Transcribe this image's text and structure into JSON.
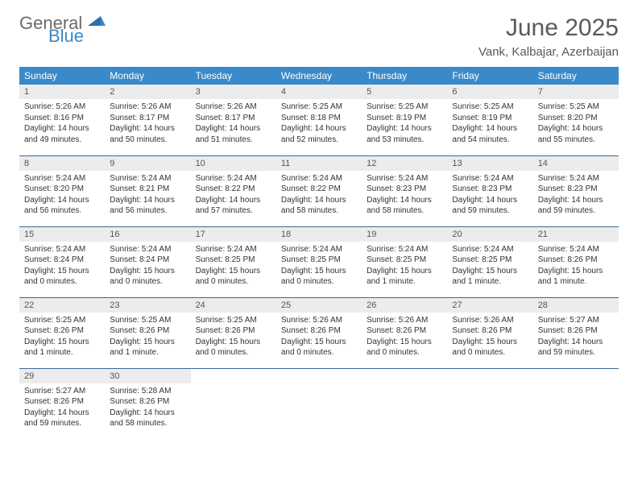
{
  "logo": {
    "general": "General",
    "blue": "Blue"
  },
  "title": "June 2025",
  "location": "Vank, Kalbajar, Azerbaijan",
  "colors": {
    "header_bg": "#3a8ac9",
    "header_text": "#ffffff",
    "daynum_bg": "#ececec",
    "row_border": "#3a6a9a",
    "title_color": "#5a5a5a",
    "logo_gray": "#6b6b6b",
    "logo_blue": "#3a8ac9"
  },
  "weekdays": [
    "Sunday",
    "Monday",
    "Tuesday",
    "Wednesday",
    "Thursday",
    "Friday",
    "Saturday"
  ],
  "font": {
    "body_size": 10,
    "daynum_size": 11,
    "weekday_size": 12,
    "title_size": 30,
    "location_size": 15
  },
  "days": [
    {
      "n": 1,
      "sunrise": "5:26 AM",
      "sunset": "8:16 PM",
      "daylight": "14 hours and 49 minutes."
    },
    {
      "n": 2,
      "sunrise": "5:26 AM",
      "sunset": "8:17 PM",
      "daylight": "14 hours and 50 minutes."
    },
    {
      "n": 3,
      "sunrise": "5:26 AM",
      "sunset": "8:17 PM",
      "daylight": "14 hours and 51 minutes."
    },
    {
      "n": 4,
      "sunrise": "5:25 AM",
      "sunset": "8:18 PM",
      "daylight": "14 hours and 52 minutes."
    },
    {
      "n": 5,
      "sunrise": "5:25 AM",
      "sunset": "8:19 PM",
      "daylight": "14 hours and 53 minutes."
    },
    {
      "n": 6,
      "sunrise": "5:25 AM",
      "sunset": "8:19 PM",
      "daylight": "14 hours and 54 minutes."
    },
    {
      "n": 7,
      "sunrise": "5:25 AM",
      "sunset": "8:20 PM",
      "daylight": "14 hours and 55 minutes."
    },
    {
      "n": 8,
      "sunrise": "5:24 AM",
      "sunset": "8:20 PM",
      "daylight": "14 hours and 56 minutes."
    },
    {
      "n": 9,
      "sunrise": "5:24 AM",
      "sunset": "8:21 PM",
      "daylight": "14 hours and 56 minutes."
    },
    {
      "n": 10,
      "sunrise": "5:24 AM",
      "sunset": "8:22 PM",
      "daylight": "14 hours and 57 minutes."
    },
    {
      "n": 11,
      "sunrise": "5:24 AM",
      "sunset": "8:22 PM",
      "daylight": "14 hours and 58 minutes."
    },
    {
      "n": 12,
      "sunrise": "5:24 AM",
      "sunset": "8:23 PM",
      "daylight": "14 hours and 58 minutes."
    },
    {
      "n": 13,
      "sunrise": "5:24 AM",
      "sunset": "8:23 PM",
      "daylight": "14 hours and 59 minutes."
    },
    {
      "n": 14,
      "sunrise": "5:24 AM",
      "sunset": "8:23 PM",
      "daylight": "14 hours and 59 minutes."
    },
    {
      "n": 15,
      "sunrise": "5:24 AM",
      "sunset": "8:24 PM",
      "daylight": "15 hours and 0 minutes."
    },
    {
      "n": 16,
      "sunrise": "5:24 AM",
      "sunset": "8:24 PM",
      "daylight": "15 hours and 0 minutes."
    },
    {
      "n": 17,
      "sunrise": "5:24 AM",
      "sunset": "8:25 PM",
      "daylight": "15 hours and 0 minutes."
    },
    {
      "n": 18,
      "sunrise": "5:24 AM",
      "sunset": "8:25 PM",
      "daylight": "15 hours and 0 minutes."
    },
    {
      "n": 19,
      "sunrise": "5:24 AM",
      "sunset": "8:25 PM",
      "daylight": "15 hours and 1 minute."
    },
    {
      "n": 20,
      "sunrise": "5:24 AM",
      "sunset": "8:25 PM",
      "daylight": "15 hours and 1 minute."
    },
    {
      "n": 21,
      "sunrise": "5:24 AM",
      "sunset": "8:26 PM",
      "daylight": "15 hours and 1 minute."
    },
    {
      "n": 22,
      "sunrise": "5:25 AM",
      "sunset": "8:26 PM",
      "daylight": "15 hours and 1 minute."
    },
    {
      "n": 23,
      "sunrise": "5:25 AM",
      "sunset": "8:26 PM",
      "daylight": "15 hours and 1 minute."
    },
    {
      "n": 24,
      "sunrise": "5:25 AM",
      "sunset": "8:26 PM",
      "daylight": "15 hours and 0 minutes."
    },
    {
      "n": 25,
      "sunrise": "5:26 AM",
      "sunset": "8:26 PM",
      "daylight": "15 hours and 0 minutes."
    },
    {
      "n": 26,
      "sunrise": "5:26 AM",
      "sunset": "8:26 PM",
      "daylight": "15 hours and 0 minutes."
    },
    {
      "n": 27,
      "sunrise": "5:26 AM",
      "sunset": "8:26 PM",
      "daylight": "15 hours and 0 minutes."
    },
    {
      "n": 28,
      "sunrise": "5:27 AM",
      "sunset": "8:26 PM",
      "daylight": "14 hours and 59 minutes."
    },
    {
      "n": 29,
      "sunrise": "5:27 AM",
      "sunset": "8:26 PM",
      "daylight": "14 hours and 59 minutes."
    },
    {
      "n": 30,
      "sunrise": "5:28 AM",
      "sunset": "8:26 PM",
      "daylight": "14 hours and 58 minutes."
    }
  ],
  "labels": {
    "sunrise": "Sunrise:",
    "sunset": "Sunset:",
    "daylight": "Daylight:"
  }
}
